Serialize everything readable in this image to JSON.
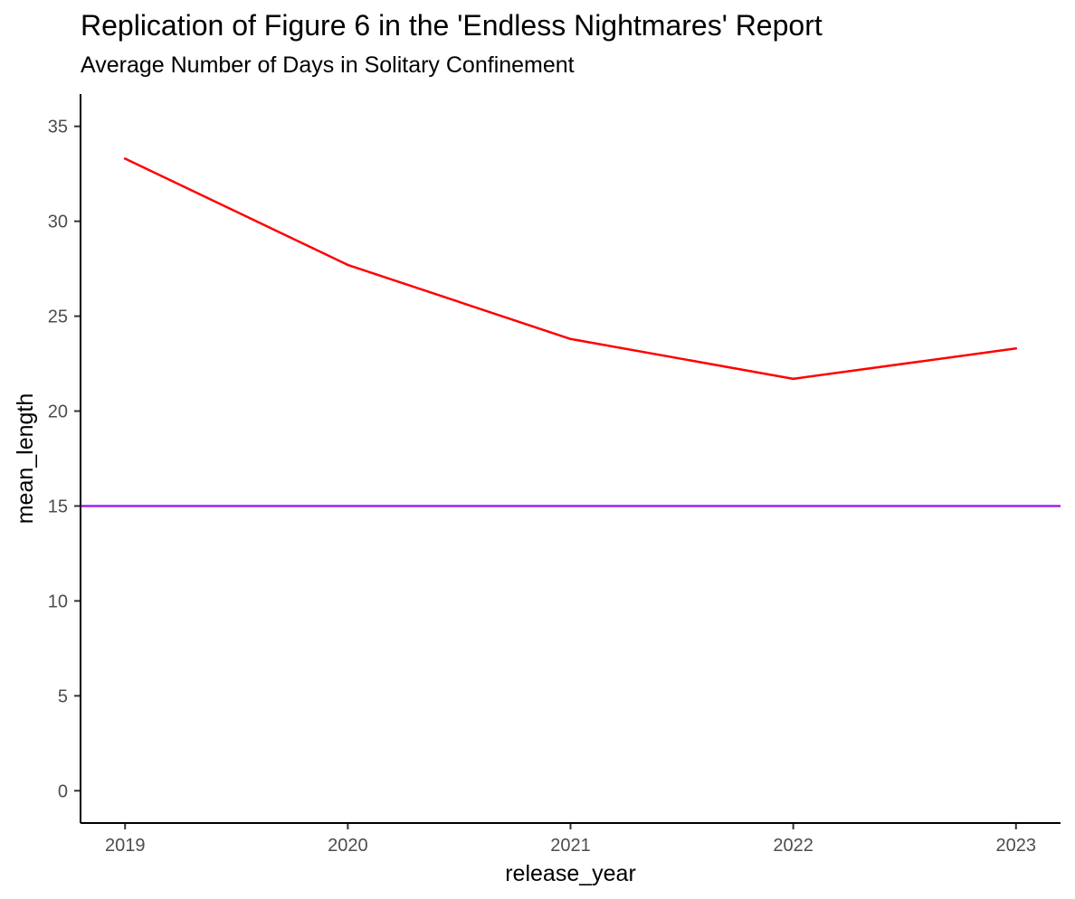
{
  "chart_data": {
    "type": "line",
    "title": "Replication of Figure 6 in the 'Endless Nightmares' Report",
    "subtitle": "Average Number of Days in Solitary Confinement",
    "xlabel": "release_year",
    "ylabel": "mean_length",
    "x": [
      2019,
      2020,
      2021,
      2022,
      2023
    ],
    "x_tick_labels": [
      "2019",
      "2020",
      "2021",
      "2022",
      "2023"
    ],
    "y_ticks": [
      0,
      5,
      10,
      15,
      20,
      25,
      30,
      35
    ],
    "y_tick_labels": [
      "0",
      "5",
      "10",
      "15",
      "20",
      "25",
      "30",
      "35"
    ],
    "xlim": [
      2018.8,
      2023.2
    ],
    "ylim": [
      -1.7,
      36.7
    ],
    "grid": false,
    "series": [
      {
        "values": [
          33.3,
          27.7,
          23.8,
          21.7,
          23.3
        ],
        "color": "#ff0000"
      }
    ],
    "reference_lines": [
      {
        "orientation": "horizontal",
        "y": 15,
        "color": "#a020f0"
      }
    ]
  }
}
